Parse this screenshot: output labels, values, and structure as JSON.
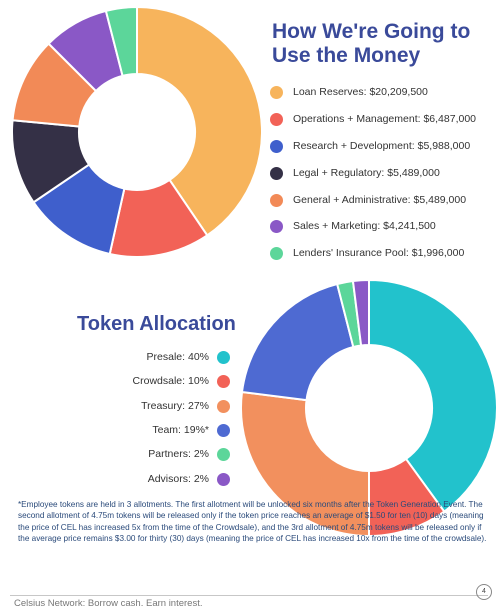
{
  "chart_data": [
    {
      "type": "pie",
      "variant": "donut",
      "title": "How We're Going to Use the Money",
      "legend_position": "right",
      "categories": [
        "Loan Reserves: $20,209,500",
        "Operations + Management: $6,487,000",
        "Research + Development: $5,988,000",
        "Legal + Regulatory: $5,489,000",
        "General + Administrative: $5,489,000",
        "Sales + Marketing: $4,241,500",
        "Lenders' Insurance Pool: $1,996,000"
      ],
      "values": [
        20209500,
        6487000,
        5988000,
        5489000,
        5489000,
        4241500,
        1996000
      ],
      "colors": [
        "#f7b45c",
        "#f26257",
        "#3f5fcc",
        "#343046",
        "#f28a57",
        "#8a58c6",
        "#5cd69a"
      ]
    },
    {
      "type": "pie",
      "variant": "donut",
      "title": "Token Allocation",
      "legend_position": "left",
      "categories": [
        "Presale: 40%",
        "Crowdsale: 10%",
        "Treasury: 27%",
        "Team: 19%*",
        "Partners: 2%",
        "Advisors: 2%"
      ],
      "values": [
        40,
        10,
        27,
        19,
        2,
        2
      ],
      "colors": [
        "#22c2cc",
        "#f26257",
        "#f2905e",
        "#4e6ad2",
        "#5cd69a",
        "#8a58c6"
      ]
    }
  ],
  "footnote": "*Employee tokens are held in 3 allotments. The first allotment will be unlocked six months after the Token Generation Event. The second allotment of 4.75m tokens will be released only if the token price reaches an average of $1.50 for ten (10) days (meaning the price of CEL has increased 5x from the time of the Crowdsale),  and the 3rd allotment of 4.75m tokens will be released only if the average price remains $3.00 for thirty (30) days (meaning the price of CEL has increased 10x from the time of the crowdsale).",
  "footer": "Celsius Network: Borrow cash. Earn interest.",
  "page_number": "4"
}
